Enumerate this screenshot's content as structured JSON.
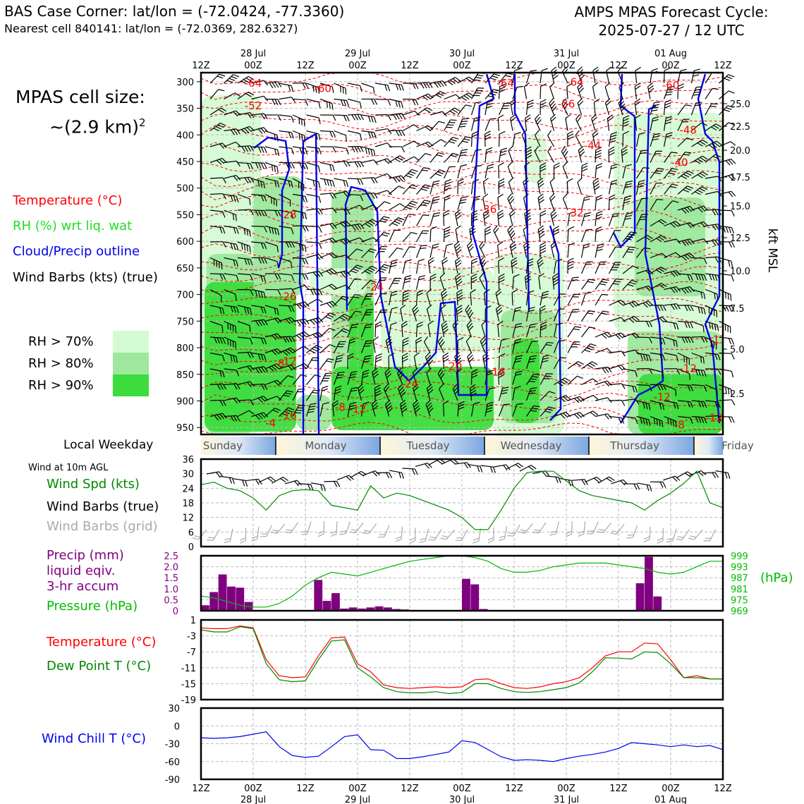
{
  "header": {
    "title": "BAS Case Corner: lat/lon = (-72.0424, -77.3360)",
    "subtitle": "Nearest cell 840141: lat/lon = (-72.0369, 282.6327)",
    "cycle_line1": "AMPS MPAS Forecast Cycle:",
    "cycle_line2": "2025-07-27 / 12 UTC"
  },
  "cell_size": {
    "line1": "MPAS cell size:",
    "line2": "~(2.9 km)",
    "sup": "2"
  },
  "legend": {
    "temperature": "Temperature (°C)",
    "rh": "RH (%) wrt liq. wat",
    "cloud": "Cloud/Precip outline",
    "barbs": "Wind Barbs (kts) (true)",
    "rh70": "RH > 70%",
    "rh80": "RH > 80%",
    "rh90": "RH > 90%"
  },
  "colors": {
    "rh70": "#d4fbd4",
    "rh80": "#9de89d",
    "rh90": "#3bdc3b",
    "temp": "#ff0000",
    "cloud": "#0000ee",
    "wind_spd": "#008800",
    "pressure": "#00bb00",
    "precip": "#800080",
    "wind_chill": "#0000ee",
    "grid_barbs": "#aaaaaa"
  },
  "time_axis": {
    "ticks": [
      "12Z",
      "00Z",
      "12Z",
      "00Z",
      "12Z",
      "00Z",
      "12Z",
      "00Z",
      "12Z",
      "00Z",
      "12Z"
    ],
    "dates": [
      "28 Jul",
      "29 Jul",
      "30 Jul",
      "31 Jul",
      "01 Aug"
    ]
  },
  "weekday": {
    "label": "Local Weekday",
    "days": [
      "Sunday",
      "Monday",
      "Tuesday",
      "Wednesday",
      "Thursday",
      "Friday"
    ]
  },
  "surface_labels": {
    "wind_10m": "Wind at 10m AGL",
    "wind_spd": "Wind Spd (kts)",
    "barbs_true": "Wind Barbs (true)",
    "barbs_grid": "Wind Barbs (grid)",
    "precip1": "Precip (mm)",
    "precip2": "liquid eqiv.",
    "precip3": "3-hr accum",
    "pressure": "Pressure (hPa)",
    "hpa": "(hPa)",
    "temperature": "Temperature (°C)",
    "dewpoint": "Dew Point T (°C)",
    "windchill": "Wind Chill T (°C)"
  },
  "chart_data": [
    {
      "type": "heatmap",
      "y_ticks": [
        "300",
        "350",
        "400",
        "450",
        "500",
        "550",
        "600",
        "650",
        "700",
        "750",
        "800",
        "850",
        "900",
        "950"
      ],
      "right_ticks": [
        "25.0",
        "22.5",
        "20.0",
        "17.5",
        "15.0",
        "12.5",
        "10.0",
        "7.5",
        "5.0",
        "2.5"
      ],
      "right_label": "kft MSL",
      "temp_contour_labels": [
        {
          "text": "-64",
          "t": 6,
          "p": 303
        },
        {
          "text": "-60",
          "t": 14,
          "p": 313
        },
        {
          "text": "-52",
          "t": 6,
          "p": 345
        },
        {
          "text": "-64",
          "t": 35,
          "p": 303
        },
        {
          "text": "-64",
          "t": 43,
          "p": 301
        },
        {
          "text": "-56",
          "t": 42,
          "p": 342
        },
        {
          "text": "-60",
          "t": 54,
          "p": 307
        },
        {
          "text": "-48",
          "t": 56,
          "p": 391
        },
        {
          "text": "-44",
          "t": 45,
          "p": 420
        },
        {
          "text": "-40",
          "t": 55,
          "p": 452
        },
        {
          "text": "-36",
          "t": 33,
          "p": 540
        },
        {
          "text": "-32",
          "t": 43,
          "p": 547
        },
        {
          "text": "-28",
          "t": 10,
          "p": 550
        },
        {
          "text": "-26",
          "t": 10,
          "p": 704
        },
        {
          "text": "-24",
          "t": 20,
          "p": 686
        },
        {
          "text": "-20",
          "t": 29,
          "p": 835
        },
        {
          "text": "-16",
          "t": 34,
          "p": 846
        },
        {
          "text": "-24",
          "t": 24,
          "p": 868
        },
        {
          "text": "-8",
          "t": 9,
          "p": 830
        },
        {
          "text": "-12",
          "t": 10,
          "p": 826
        },
        {
          "text": "-16",
          "t": 10,
          "p": 927
        },
        {
          "text": "-4",
          "t": 8,
          "p": 942
        },
        {
          "text": "-8",
          "t": 16,
          "p": 912
        },
        {
          "text": "-12",
          "t": 18,
          "p": 915
        },
        {
          "text": "-12",
          "t": 56,
          "p": 839
        },
        {
          "text": "-12",
          "t": 53,
          "p": 893
        },
        {
          "text": "-8",
          "t": 55,
          "p": 945
        },
        {
          "text": "-12",
          "t": 59,
          "p": 932
        },
        {
          "text": "-1",
          "t": 59,
          "p": 785
        }
      ]
    },
    {
      "type": "line",
      "name": "Wind Spd (kts)",
      "ylim": [
        0,
        36
      ],
      "y_ticks": [
        "0",
        "6",
        "12",
        "18",
        "24",
        "30",
        "36"
      ],
      "x": [
        0,
        1,
        2,
        3,
        4,
        5,
        6,
        7,
        8,
        9,
        10,
        11,
        12,
        13,
        14,
        15,
        16,
        17,
        18,
        19,
        20,
        21,
        22,
        23,
        24,
        25,
        26,
        27,
        28,
        29,
        30,
        31,
        32,
        33,
        34,
        35,
        36,
        37,
        38,
        39,
        40
      ],
      "values": [
        25.5,
        26.5,
        24,
        23,
        20,
        15,
        21,
        23,
        23.5,
        23,
        17,
        16,
        15,
        25,
        20,
        22,
        21,
        19,
        17,
        15,
        12,
        7,
        7,
        15,
        24,
        30.5,
        31,
        31,
        27,
        23,
        21,
        20,
        19,
        18,
        15,
        19,
        22,
        26,
        31,
        18,
        16
      ]
    },
    {
      "type": "bar",
      "name": "Precip (mm)",
      "ylim": [
        0,
        2.5
      ],
      "y_ticks": [
        "0",
        "0.5",
        "1.0",
        "1.5",
        "2.0",
        "2.5"
      ],
      "values": [
        0.25,
        0.85,
        1.65,
        1.1,
        1.05,
        0.4,
        0,
        0,
        0,
        0,
        0,
        0,
        0,
        1.4,
        0.45,
        0.8,
        0.1,
        0.15,
        0.1,
        0.15,
        0.2,
        0.15,
        0.08,
        0.06,
        0,
        0,
        0,
        0,
        0,
        0,
        1.45,
        1.2,
        0.08,
        0,
        0,
        0,
        0,
        0,
        0,
        0,
        0,
        0,
        0,
        0,
        0,
        0,
        0,
        0,
        0,
        0,
        1.25,
        2.45,
        0.65,
        0,
        0,
        0,
        0,
        0,
        0,
        0
      ],
      "pressure_name": "Pressure (hPa)",
      "pressure_ylim": [
        969,
        999
      ],
      "pressure_ticks": [
        "969",
        "975",
        "981",
        "987",
        "993",
        "999"
      ],
      "pressure": [
        977,
        976,
        974,
        972,
        971,
        971,
        973,
        977,
        983,
        987,
        990,
        989,
        988,
        990,
        992,
        994,
        996,
        997,
        998,
        999,
        999,
        998,
        996,
        992,
        990,
        990,
        991,
        993,
        994,
        995,
        995,
        995,
        994,
        993,
        992,
        990,
        989,
        990,
        993,
        996,
        996
      ]
    },
    {
      "type": "line",
      "name": "Temperature / Dew Point (°C)",
      "ylim": [
        -19,
        1
      ],
      "y_ticks": [
        "1",
        "-3",
        "-7",
        "-11",
        "-15",
        "-19"
      ],
      "series": [
        {
          "name": "Temperature (°C)",
          "values": [
            -1,
            -1.2,
            -1.2,
            -0.5,
            -1,
            -9,
            -13,
            -13.5,
            -13.3,
            -8,
            -3.5,
            -3.3,
            -10,
            -12,
            -15.3,
            -16,
            -16.2,
            -16,
            -15.8,
            -16,
            -15.8,
            -14,
            -13.8,
            -15,
            -16,
            -16.2,
            -15.8,
            -15,
            -14.5,
            -13.5,
            -11,
            -8,
            -7,
            -7,
            -4.8,
            -5,
            -9,
            -13.5,
            -13,
            -13.8,
            -13.8
          ]
        },
        {
          "name": "Dew Point T (°C)",
          "values": [
            -1.5,
            -2,
            -2,
            -0.7,
            -1.2,
            -10,
            -14,
            -14.5,
            -14.3,
            -9,
            -4.3,
            -4,
            -11,
            -13.3,
            -16,
            -17,
            -17.3,
            -17.3,
            -17,
            -17.5,
            -17.2,
            -15,
            -15,
            -16.2,
            -17,
            -17.2,
            -17,
            -16.5,
            -16,
            -14.8,
            -12,
            -8.5,
            -8.6,
            -8.8,
            -7,
            -7.2,
            -10,
            -13.5,
            -13.5,
            -13.8,
            -13.8
          ]
        }
      ]
    },
    {
      "type": "line",
      "name": "Wind Chill T (°C)",
      "ylim": [
        -90,
        30
      ],
      "y_ticks": [
        "30",
        "0",
        "-30",
        "-60",
        "-90"
      ],
      "values": [
        -20,
        -21,
        -20,
        -18,
        -14,
        -10,
        -35,
        -50,
        -53,
        -51,
        -35,
        -18,
        -15,
        -40,
        -41,
        -55,
        -55,
        -52,
        -48,
        -44,
        -25,
        -28,
        -40,
        -52,
        -58,
        -57,
        -58,
        -60,
        -55,
        -51,
        -48,
        -44,
        -38,
        -28,
        -30,
        -32,
        -35,
        -32,
        -35,
        -33,
        -40
      ]
    }
  ]
}
